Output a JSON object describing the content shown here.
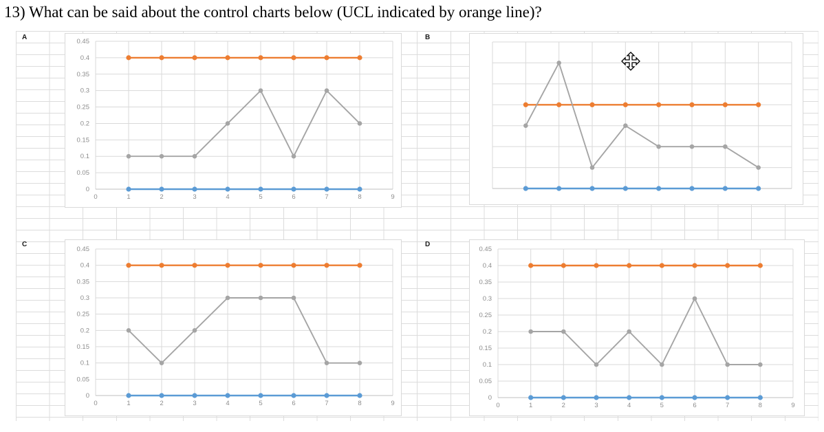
{
  "question": {
    "text": "13) What can be said about the control charts below (UCL indicated by orange line)?"
  },
  "sheet_labels": {
    "a": "A",
    "b": "B",
    "c": "C",
    "d": "D"
  },
  "cursor": {
    "type": "move-cursor",
    "position_hint": "over chart B"
  },
  "colors": {
    "ucl_orange": "#ED7D31",
    "lcl_blue": "#5B9BD5",
    "sample_gray": "#A5A5A5",
    "chart_gridline": "#D9D9D9",
    "axis_line": "#BFBFBF",
    "tick_text": "#8C8C8C",
    "sheet_gridline": "#DCDCDC"
  },
  "chart_data": [
    {
      "id": "A",
      "type": "line",
      "x": [
        1,
        2,
        3,
        4,
        5,
        6,
        7,
        8
      ],
      "xlim": [
        0,
        9
      ],
      "ylim": [
        0,
        0.45
      ],
      "ytick_step": 0.05,
      "xticks": [
        "0",
        "1",
        "2",
        "3",
        "4",
        "5",
        "6",
        "7",
        "8",
        "9"
      ],
      "yticks": [
        "0",
        "0.05",
        "0.1",
        "0.15",
        "0.2",
        "0.25",
        "0.3",
        "0.35",
        "0.4",
        "0.45"
      ],
      "axis_labels_visible": true,
      "grid": true,
      "legend_position": "none",
      "series": [
        {
          "role": "ucl",
          "values": [
            0.4,
            0.4,
            0.4,
            0.4,
            0.4,
            0.4,
            0.4,
            0.4
          ]
        },
        {
          "role": "data",
          "values": [
            0.1,
            0.1,
            0.1,
            0.2,
            0.3,
            0.1,
            0.3,
            0.2
          ]
        },
        {
          "role": "lcl",
          "values": [
            0,
            0,
            0,
            0,
            0,
            0,
            0,
            0
          ]
        }
      ]
    },
    {
      "id": "B",
      "type": "line",
      "x": [
        1,
        2,
        3,
        4,
        5,
        6,
        7,
        8
      ],
      "xlim": [
        0,
        9
      ],
      "ylim": [
        0,
        0.35
      ],
      "ytick_step": 0.05,
      "xticks": [],
      "yticks": [],
      "axis_labels_visible": false,
      "grid": true,
      "legend_position": "none",
      "series": [
        {
          "role": "ucl",
          "values": [
            0.2,
            0.2,
            0.2,
            0.2,
            0.2,
            0.2,
            0.2,
            0.2
          ]
        },
        {
          "role": "data",
          "values": [
            0.15,
            0.3,
            0.05,
            0.15,
            0.1,
            0.1,
            0.1,
            0.05
          ]
        },
        {
          "role": "lcl",
          "values": [
            0,
            0,
            0,
            0,
            0,
            0,
            0,
            0
          ]
        }
      ]
    },
    {
      "id": "C",
      "type": "line",
      "x": [
        1,
        2,
        3,
        4,
        5,
        6,
        7,
        8
      ],
      "xlim": [
        0,
        9
      ],
      "ylim": [
        0,
        0.45
      ],
      "ytick_step": 0.05,
      "xticks": [
        "0",
        "1",
        "2",
        "3",
        "4",
        "5",
        "6",
        "7",
        "8",
        "9"
      ],
      "yticks": [
        "0",
        "0.05",
        "0.1",
        "0.15",
        "0.2",
        "0.25",
        "0.3",
        "0.35",
        "0.4",
        "0.45"
      ],
      "axis_labels_visible": true,
      "grid": true,
      "legend_position": "none",
      "series": [
        {
          "role": "ucl",
          "values": [
            0.4,
            0.4,
            0.4,
            0.4,
            0.4,
            0.4,
            0.4,
            0.4
          ]
        },
        {
          "role": "data",
          "values": [
            0.2,
            0.1,
            0.2,
            0.3,
            0.3,
            0.3,
            0.1,
            0.1
          ]
        },
        {
          "role": "lcl",
          "values": [
            0,
            0,
            0,
            0,
            0,
            0,
            0,
            0
          ]
        }
      ]
    },
    {
      "id": "D",
      "type": "line",
      "x": [
        1,
        2,
        3,
        4,
        5,
        6,
        7,
        8
      ],
      "xlim": [
        0,
        9
      ],
      "ylim": [
        0,
        0.45
      ],
      "ytick_step": 0.05,
      "xticks": [
        "0",
        "1",
        "2",
        "3",
        "4",
        "5",
        "6",
        "7",
        "8",
        "9"
      ],
      "yticks": [
        "0",
        "0.05",
        "0.1",
        "0.15",
        "0.2",
        "0.25",
        "0.3",
        "0.35",
        "0.4",
        "0.45"
      ],
      "axis_labels_visible": true,
      "grid": true,
      "legend_position": "none",
      "series": [
        {
          "role": "ucl",
          "values": [
            0.4,
            0.4,
            0.4,
            0.4,
            0.4,
            0.4,
            0.4,
            0.4
          ]
        },
        {
          "role": "data",
          "values": [
            0.2,
            0.2,
            0.1,
            0.2,
            0.1,
            0.3,
            0.1,
            0.1
          ]
        },
        {
          "role": "lcl",
          "values": [
            0,
            0,
            0,
            0,
            0,
            0,
            0,
            0
          ]
        }
      ]
    }
  ]
}
